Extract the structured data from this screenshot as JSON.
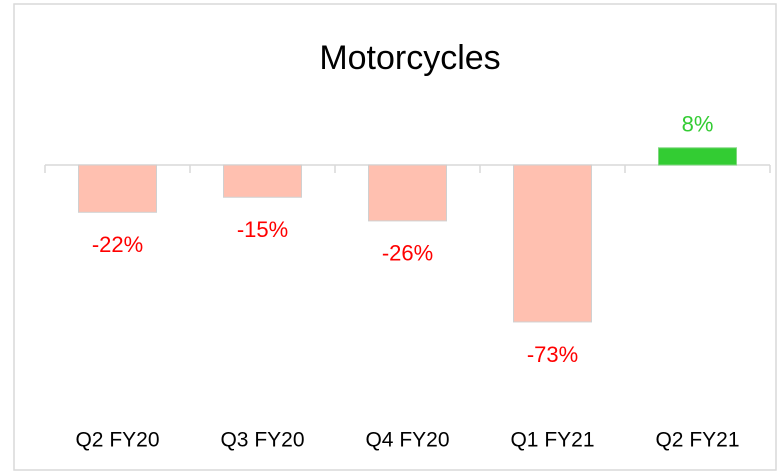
{
  "chart_data": {
    "type": "bar",
    "title": "Motorcycles",
    "categories": [
      "Q2 FY20",
      "Q3 FY20",
      "Q4 FY20",
      "Q1 FY21",
      "Q2 FY21"
    ],
    "values": [
      -22,
      -15,
      -26,
      -73,
      8
    ],
    "value_labels": [
      "-22%",
      "-15%",
      "-26%",
      "-73%",
      "8%"
    ],
    "color_negative": "#ffc0b0",
    "color_positive": "#33cc33",
    "label_color_negative": "#ff0000",
    "label_color_positive": "#33cc33"
  }
}
